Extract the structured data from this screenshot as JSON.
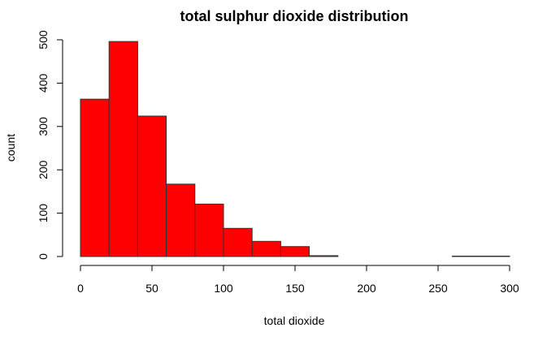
{
  "chart_data": {
    "type": "bar",
    "title": "total sulphur dioxide distribution",
    "xlabel": "total dioxide",
    "ylabel": "count",
    "bin_edges": [
      0,
      20,
      40,
      60,
      80,
      100,
      120,
      140,
      160,
      180,
      200,
      220,
      240,
      260,
      280,
      300
    ],
    "values": [
      363,
      496,
      324,
      167,
      121,
      65,
      35,
      23,
      2,
      0,
      0,
      0,
      0,
      1,
      1
    ],
    "xlim": [
      0,
      300
    ],
    "ylim": [
      0,
      500
    ],
    "x_ticks": [
      0,
      50,
      100,
      150,
      200,
      250,
      300
    ],
    "y_ticks": [
      0,
      100,
      200,
      300,
      400,
      500
    ],
    "bar_color": "#ff0000",
    "bar_border_color": "#333333",
    "grid": false
  }
}
